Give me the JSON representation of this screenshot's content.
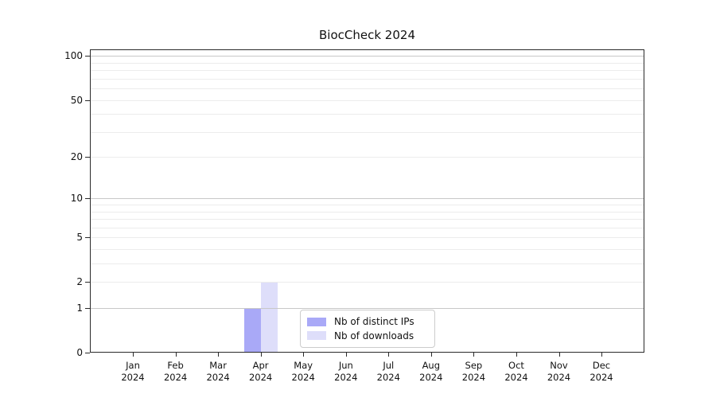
{
  "title": "BiocCheck 2024",
  "chart_data": {
    "type": "bar",
    "title": "BiocCheck 2024",
    "categories": [
      "Jan 2024",
      "Feb 2024",
      "Mar 2024",
      "Apr 2024",
      "May 2024",
      "Jun 2024",
      "Jul 2024",
      "Aug 2024",
      "Sep 2024",
      "Oct 2024",
      "Nov 2024",
      "Dec 2024"
    ],
    "series": [
      {
        "name": "Nb of distinct IPs",
        "color": "#a9a9f7",
        "values": [
          0,
          0,
          0,
          1,
          0,
          0,
          0,
          0,
          0,
          0,
          0,
          0
        ]
      },
      {
        "name": "Nb of downloads",
        "color": "#dedefa",
        "values": [
          0,
          0,
          0,
          2,
          0,
          0,
          0,
          0,
          0,
          0,
          0,
          0
        ]
      }
    ],
    "y_scale": "log1p",
    "y_ticks": [
      0,
      1,
      2,
      5,
      10,
      20,
      50,
      100
    ],
    "y_minor_gridlines": [
      3,
      4,
      6,
      7,
      8,
      9,
      30,
      40,
      60,
      70,
      80,
      90
    ],
    "ylim": [
      0,
      111
    ],
    "xlabel": "",
    "ylabel": "",
    "grid": "horizontal",
    "legend_position": "bottom-center"
  },
  "colors": {
    "axis": "#2a2a2a",
    "major_grid": "#c8c8c8",
    "minor_grid": "#ececec",
    "background": "#ffffff"
  }
}
